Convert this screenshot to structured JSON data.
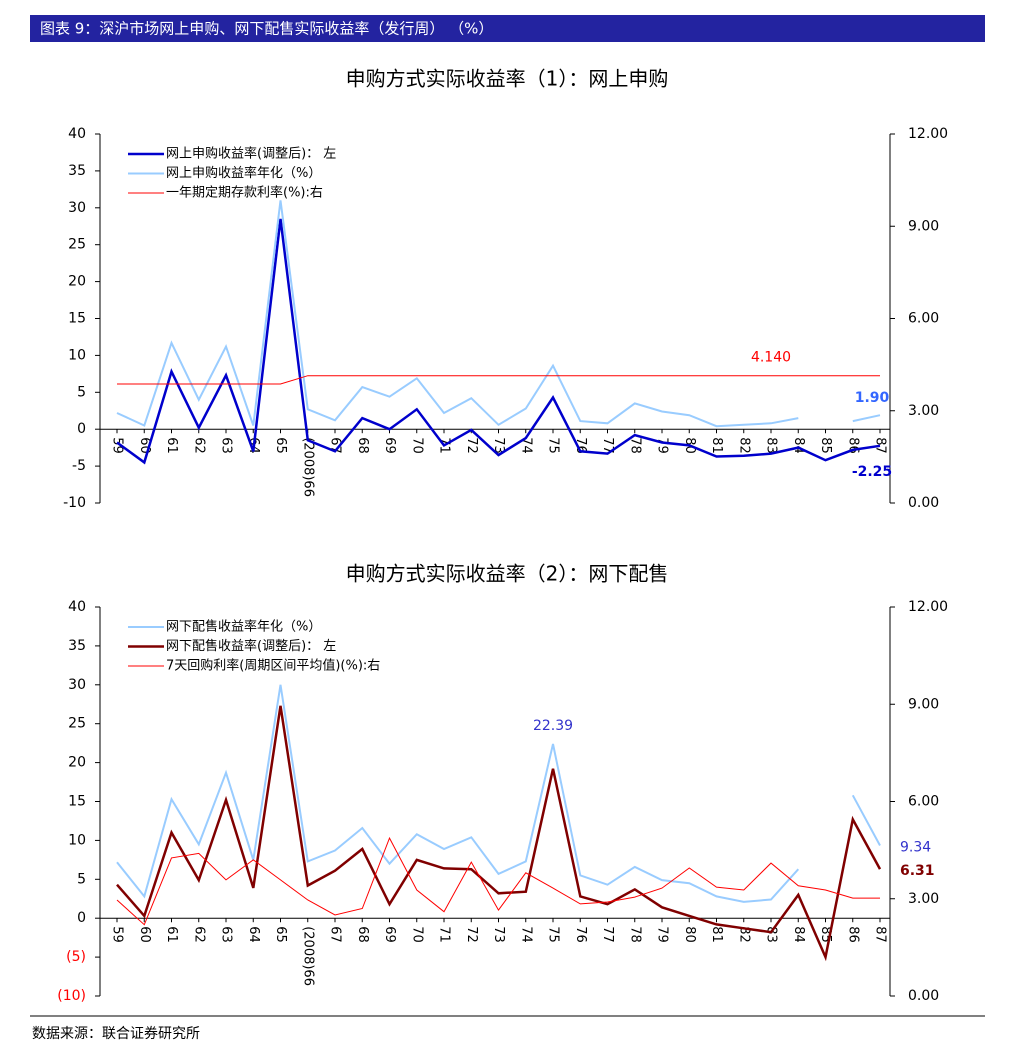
{
  "header": {
    "title": "图表 9：深沪市场网上申购、网下配售实际收益率（发行周）    （%）"
  },
  "source": "数据来源：联合证券研究所",
  "chart_data": [
    {
      "type": "line",
      "title": "申购方式实际收益率（1）：网上申购",
      "categories": [
        "59",
        "60",
        "61",
        "62",
        "63",
        "64",
        "65",
        "(2008)66",
        "67",
        "68",
        "69",
        "70",
        "71",
        "72",
        "73",
        "74",
        "75",
        "76",
        "77",
        "78",
        "79",
        "80",
        "81",
        "82",
        "83",
        "84",
        "85",
        "86",
        "87"
      ],
      "ylim": [
        -10,
        40
      ],
      "yticks": [
        -10,
        -5,
        0,
        5,
        10,
        15,
        20,
        25,
        30,
        35,
        40
      ],
      "y2lim": [
        0,
        12
      ],
      "y2ticks": [
        {
          "value": 0,
          "label": "0.00"
        },
        {
          "value": 3,
          "label": "3.00"
        },
        {
          "value": 6,
          "label": "6.00"
        },
        {
          "value": 9,
          "label": "9.00"
        },
        {
          "value": 12,
          "label": "12.00"
        }
      ],
      "legend": "upper left",
      "grid": false,
      "series": [
        {
          "name": "网上申购收益率(调整后)： 左",
          "color": "#0000cc",
          "width": 2.5,
          "values": [
            -1.8,
            -4.5,
            7.8,
            0.2,
            7.3,
            -3,
            28.5,
            -1.5,
            -3,
            1.5,
            0,
            2.7,
            -2.2,
            -0.1,
            -3.5,
            -1.2,
            4.3,
            -3,
            -3.3,
            -0.8,
            -1.8,
            -2.2,
            -3.7,
            -3.6,
            -3.3,
            -2.5,
            -4.2,
            -2.8,
            -2.25
          ],
          "value_labels": [
            null,
            null,
            null,
            null,
            null,
            null,
            null,
            null,
            null,
            null,
            null,
            null,
            null,
            null,
            null,
            null,
            null,
            null,
            null,
            null,
            null,
            null,
            null,
            null,
            null,
            null,
            null,
            null,
            "-2.25"
          ],
          "value_label_color": "#0000cc"
        },
        {
          "name": "网上申购收益率年化（%）",
          "color": "#99ccff",
          "width": 2,
          "values": [
            2.2,
            0.5,
            11.7,
            4,
            11.2,
            0.5,
            31,
            2.7,
            1.2,
            5.7,
            4.4,
            6.9,
            2.2,
            4.2,
            0.6,
            2.8,
            8.6,
            1.1,
            0.8,
            3.5,
            2.4,
            1.9,
            0.4,
            0.6,
            0.8,
            1.5,
            null,
            1.1,
            1.9
          ],
          "value_labels": [
            null,
            null,
            null,
            null,
            null,
            null,
            null,
            null,
            null,
            null,
            null,
            null,
            null,
            null,
            null,
            null,
            null,
            null,
            null,
            null,
            null,
            null,
            null,
            null,
            null,
            null,
            null,
            null,
            "1.90"
          ],
          "value_label_color": "#3366ff"
        },
        {
          "name": "一年期定期存款利率(%):右",
          "color": "#ff0000",
          "width": 1,
          "axis": "y2",
          "values": [
            3.87,
            3.87,
            3.87,
            3.87,
            3.87,
            3.87,
            3.87,
            4.14,
            4.14,
            4.14,
            4.14,
            4.14,
            4.14,
            4.14,
            4.14,
            4.14,
            4.14,
            4.14,
            4.14,
            4.14,
            4.14,
            4.14,
            4.14,
            4.14,
            4.14,
            4.14,
            4.14,
            4.14,
            4.14
          ],
          "value_labels": [
            null,
            null,
            null,
            null,
            null,
            null,
            null,
            null,
            null,
            null,
            null,
            null,
            null,
            null,
            null,
            null,
            null,
            null,
            null,
            null,
            null,
            null,
            null,
            null,
            "4.140",
            null,
            null,
            null,
            null
          ],
          "value_label_color": "#ff0000"
        }
      ]
    },
    {
      "type": "line",
      "title": "申购方式实际收益率（2）：网下配售",
      "categories": [
        "59",
        "60",
        "61",
        "62",
        "63",
        "64",
        "65",
        "(2008)66",
        "67",
        "68",
        "69",
        "70",
        "71",
        "72",
        "73",
        "74",
        "75",
        "76",
        "77",
        "78",
        "79",
        "80",
        "81",
        "82",
        "83",
        "84",
        "85",
        "86",
        "87"
      ],
      "ylim": [
        -10,
        40
      ],
      "yticks": [
        {
          "value": -10,
          "label": "(10)"
        },
        {
          "value": -5,
          "label": "(5)"
        },
        0,
        5,
        10,
        15,
        20,
        25,
        30,
        35,
        40
      ],
      "negative_tick_color": "#ff0000",
      "y2lim": [
        0,
        12
      ],
      "y2ticks": [
        {
          "value": 0,
          "label": "0.00"
        },
        {
          "value": 3,
          "label": "3.00"
        },
        {
          "value": 6,
          "label": "6.00"
        },
        {
          "value": 9,
          "label": "9.00"
        },
        {
          "value": 12,
          "label": "12.00"
        }
      ],
      "legend": "upper left",
      "grid": false,
      "series": [
        {
          "name": "网下配售收益率年化（%）",
          "color": "#99ccff",
          "width": 2,
          "values": [
            7.2,
            2.8,
            15.3,
            9.5,
            18.7,
            7.5,
            30,
            7.3,
            8.7,
            11.6,
            7,
            10.8,
            8.9,
            10.4,
            5.7,
            7.3,
            22.39,
            5.5,
            4.3,
            6.6,
            4.9,
            4.5,
            2.8,
            2.1,
            2.4,
            6.3,
            null,
            15.8,
            9.34
          ],
          "value_labels": [
            null,
            null,
            null,
            null,
            null,
            null,
            null,
            null,
            null,
            null,
            null,
            null,
            null,
            null,
            null,
            null,
            "22.39",
            null,
            null,
            null,
            null,
            null,
            null,
            null,
            null,
            null,
            null,
            null,
            "9.34"
          ],
          "value_label_color": "#3333cc"
        },
        {
          "name": "网下配售收益率(调整后)： 左",
          "color": "#800000",
          "width": 2.5,
          "values": [
            4.3,
            0.3,
            11,
            4.9,
            15.2,
            3.9,
            27.3,
            4.2,
            6.1,
            8.9,
            1.8,
            7.5,
            6.4,
            6.3,
            3.2,
            3.4,
            19.2,
            2.8,
            1.8,
            3.7,
            1.4,
            0.3,
            -0.8,
            -1.3,
            -1.8,
            3,
            -5,
            12.7,
            6.31
          ],
          "value_labels": [
            null,
            null,
            null,
            null,
            null,
            null,
            null,
            null,
            null,
            null,
            null,
            null,
            null,
            null,
            null,
            null,
            null,
            null,
            null,
            null,
            null,
            null,
            null,
            null,
            null,
            null,
            null,
            null,
            "6.31"
          ],
          "value_label_color": "#800000"
        },
        {
          "name": "7天回购利率(周期区间平均值)(%):右",
          "color": "#ff0000",
          "width": 1,
          "axis": "y2",
          "values": [
            2.96,
            2.2,
            4.26,
            4.4,
            3.58,
            4.2,
            3.58,
            2.96,
            2.5,
            2.7,
            4.87,
            3.27,
            2.6,
            4.13,
            2.65,
            3.8,
            3.33,
            2.84,
            2.9,
            3.05,
            3.33,
            3.95,
            3.36,
            3.27,
            4.1,
            3.4,
            3.27,
            3.02,
            3.02
          ]
        }
      ]
    }
  ]
}
